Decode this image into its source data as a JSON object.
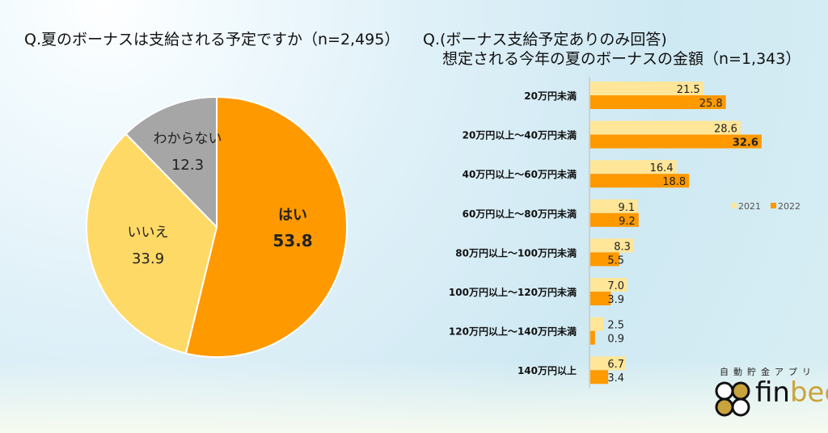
{
  "chart_data": [
    {
      "type": "pie",
      "title": "Q.夏のボーナスは支給される予定ですか（n=2,495）",
      "slices": [
        {
          "label": "はい",
          "value": 53.8,
          "color": "#FF9900"
        },
        {
          "label": "いいえ",
          "value": 33.9,
          "color": "#FFD966"
        },
        {
          "label": "わからない",
          "value": 12.3,
          "color": "#A6A6A6"
        }
      ]
    },
    {
      "type": "bar",
      "orientation": "horizontal",
      "title": [
        "Q.(ボーナス支給予定ありのみ回答)",
        "想定される今年の夏のボーナスの金額（n=1,343）"
      ],
      "categories": [
        "20万円未満",
        "20万円以上～40万円未満",
        "40万円以上～60万円未満",
        "60万円以上～80万円未満",
        "80万円以上～100万円未満",
        "100万円以上～120万円未満",
        "120万円以上～140万円未満",
        "140万円以上"
      ],
      "series": [
        {
          "name": "2021",
          "color": "#FFE699",
          "values": [
            21.5,
            28.6,
            16.4,
            9.1,
            8.3,
            7.0,
            2.5,
            6.7
          ]
        },
        {
          "name": "2022",
          "color": "#FF9900",
          "values": [
            25.8,
            32.6,
            18.8,
            9.2,
            5.5,
            3.9,
            0.9,
            3.4
          ]
        }
      ],
      "legend": "right",
      "grid": false
    }
  ],
  "logo": {
    "sub": "自動貯金アプリ",
    "word": "finbee"
  }
}
